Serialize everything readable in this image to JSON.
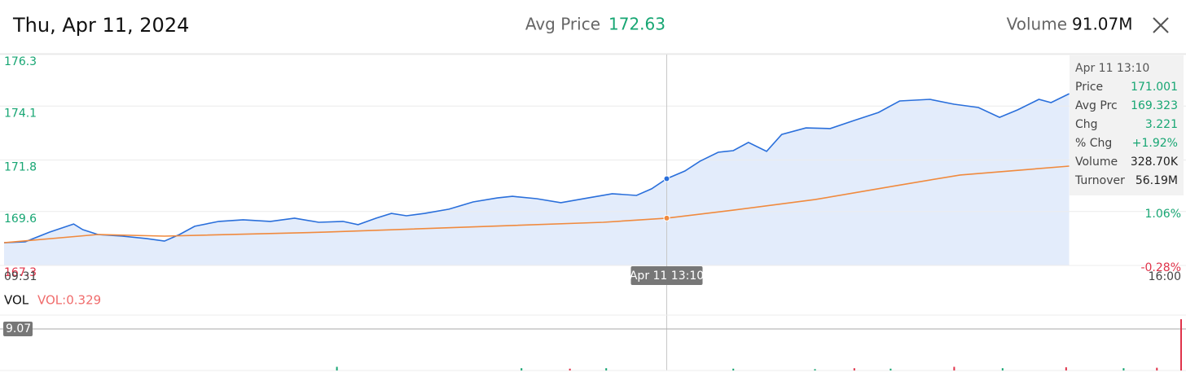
{
  "header": {
    "date": "Thu, Apr 11, 2024",
    "avg_price_label": "Avg Price",
    "avg_price": "172.63",
    "volume_label": "Volume",
    "volume": "91.07M"
  },
  "chart_data": [
    {
      "type": "line",
      "xlim": [
        571,
        960
      ],
      "xticks": [
        {
          "value": 571,
          "label": "09:31"
        },
        {
          "value": 960,
          "label": "16:00"
        }
      ],
      "ylim": [
        167.3,
        176.3
      ],
      "yticks": [
        176.3,
        174.1,
        171.8,
        169.6,
        167.3
      ],
      "ytick_colors": [
        "#17a673",
        "#17a673",
        "#17a673",
        "#17a673",
        "#e0334a"
      ],
      "y2lim": [
        -0.28,
        4.96
      ],
      "y2ticks": [
        {
          "value": 1.06,
          "label": "1.06%"
        },
        {
          "value": -0.28,
          "label": "-0.28%"
        }
      ],
      "y2tick_colors": [
        "#17a673",
        "#e0334a"
      ],
      "grid": true,
      "series": [
        {
          "color": "#2a6fdb",
          "area": true,
          "x": [
            571,
            578,
            586,
            594,
            597,
            602,
            610,
            618,
            624,
            629,
            634,
            642,
            650,
            659,
            667,
            675,
            683,
            688,
            694,
            699,
            704,
            710,
            718,
            726,
            734,
            739,
            747,
            755,
            764,
            772,
            780,
            785,
            790,
            796,
            801,
            807,
            812,
            817,
            823,
            828,
            836,
            844,
            852,
            860,
            867,
            877,
            885,
            893,
            900,
            906,
            913,
            917,
            923
          ],
          "values": [
            168.27,
            168.31,
            168.72,
            169.07,
            168.83,
            168.62,
            168.55,
            168.45,
            168.34,
            168.62,
            168.97,
            169.18,
            169.25,
            169.18,
            169.32,
            169.14,
            169.18,
            169.04,
            169.32,
            169.52,
            169.42,
            169.52,
            169.7,
            170.01,
            170.18,
            170.25,
            170.15,
            169.98,
            170.18,
            170.36,
            170.29,
            170.57,
            171.0,
            171.33,
            171.75,
            172.13,
            172.2,
            172.55,
            172.17,
            172.89,
            173.17,
            173.14,
            173.49,
            173.83,
            174.32,
            174.39,
            174.18,
            174.04,
            173.62,
            173.94,
            174.39,
            174.25,
            174.63
          ]
        },
        {
          "color": "#f08a3e",
          "area": false,
          "x": [
            571,
            602,
            624,
            677,
            769,
            790,
            812,
            839,
            866,
            887,
            923
          ],
          "values": [
            168.27,
            168.62,
            168.55,
            168.72,
            169.14,
            169.32,
            169.66,
            170.11,
            170.71,
            171.16,
            171.54
          ]
        }
      ],
      "crosshair": {
        "x": 790,
        "label": "Apr 11 13:10"
      },
      "tooltip": {
        "title": "Apr 11 13:10",
        "rows": [
          {
            "label": "Price",
            "value": "171.001",
            "color": "#17a673"
          },
          {
            "label": "Avg Prc",
            "value": "169.323",
            "color": "#17a673"
          },
          {
            "label": "Chg",
            "value": "3.221",
            "color": "#17a673"
          },
          {
            "label": "% Chg",
            "value": "+1.92%",
            "color": "#17a673"
          },
          {
            "label": "Volume",
            "value": "328.70K",
            "color": "#222222"
          },
          {
            "label": "Turnover",
            "value": "56.19M",
            "color": "#222222"
          }
        ]
      }
    },
    {
      "type": "bar",
      "title": "VOL",
      "subtitle": "VOL:0.329",
      "xlim": [
        571,
        960
      ],
      "ylim": [
        0,
        12.1
      ],
      "yticks": [
        9.07
      ],
      "x": [
        681,
        742,
        758,
        770,
        812,
        839,
        852,
        864,
        885,
        901,
        922,
        941,
        952,
        960
      ],
      "values": [
        0.8,
        0.5,
        0.4,
        0.5,
        0.4,
        0.3,
        0.5,
        0.4,
        0.8,
        0.5,
        0.7,
        0.5,
        0.6,
        11.2
      ],
      "colors": [
        "#17a673",
        "#17a673",
        "#e0334a",
        "#17a673",
        "#17a673",
        "#17a673",
        "#e0334a",
        "#17a673",
        "#e0334a",
        "#17a673",
        "#e0334a",
        "#17a673",
        "#e0334a",
        "#e0334a"
      ]
    }
  ]
}
